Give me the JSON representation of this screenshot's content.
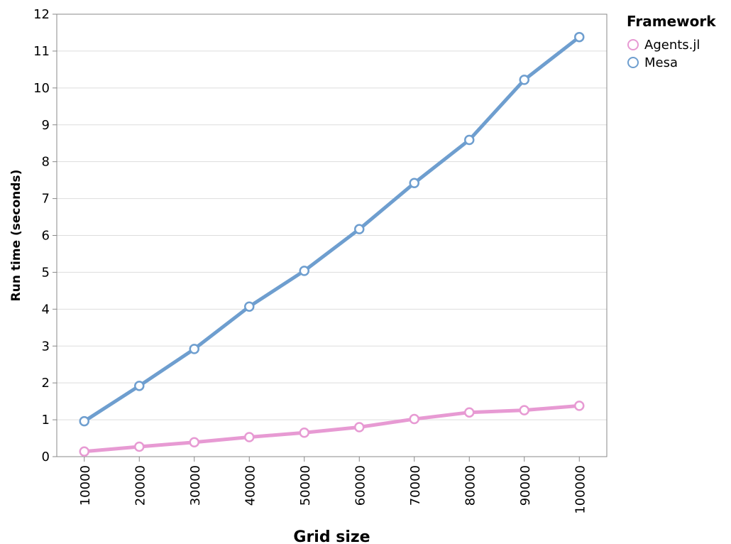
{
  "chart_data": {
    "type": "line",
    "xlabel": "Grid size",
    "ylabel": "Run time (seconds)",
    "x": [
      10000,
      20000,
      30000,
      40000,
      50000,
      60000,
      70000,
      80000,
      90000,
      100000
    ],
    "ylim": [
      0,
      12
    ],
    "yticks": [
      0,
      1,
      2,
      3,
      4,
      5,
      6,
      7,
      8,
      9,
      10,
      11,
      12
    ],
    "grid": true,
    "legend": {
      "title": "Framework",
      "position": "top-right"
    },
    "series": [
      {
        "name": "Agents.jl",
        "color": "#e79ad3",
        "values": [
          0.14,
          0.27,
          0.39,
          0.53,
          0.65,
          0.8,
          1.02,
          1.2,
          1.26,
          1.38
        ]
      },
      {
        "name": "Mesa",
        "color": "#6e9ecf",
        "values": [
          0.96,
          1.92,
          2.92,
          4.07,
          5.04,
          6.17,
          7.42,
          8.59,
          10.22,
          11.38
        ]
      }
    ]
  }
}
